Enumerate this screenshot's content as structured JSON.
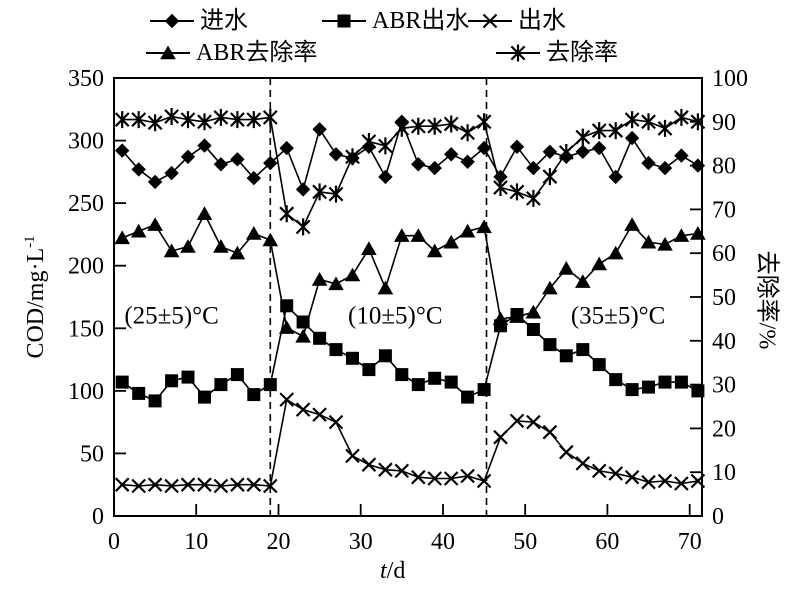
{
  "figure": {
    "description": "COD and removal-rate performance chart over time with three temperature phases"
  },
  "labels": {
    "y_left_base": "COD/mg·L",
    "y_left_sup": "-1",
    "y_right": "去除率/%",
    "x_italic": "t",
    "x_rest": "/d"
  },
  "chart_data": {
    "type": "line",
    "title": "",
    "xlabel": "t/d",
    "ylabel_left": "COD/mg·L-1",
    "ylabel_right": "去除率/%",
    "xlim": [
      0,
      71.5
    ],
    "ylim_left": [
      0,
      350
    ],
    "ylim_right": [
      0,
      100
    ],
    "x_ticks": [
      0,
      10,
      20,
      30,
      40,
      50,
      60,
      70
    ],
    "y_ticks_left": [
      0,
      50,
      100,
      150,
      200,
      250,
      300,
      350
    ],
    "y_ticks_right": [
      0,
      10,
      20,
      30,
      40,
      50,
      60,
      70,
      80,
      90,
      100
    ],
    "grid": false,
    "legend_position": "top",
    "line_color": "#000000",
    "background_color": "#ffffff",
    "phase_dividers_t": [
      19,
      45.3
    ],
    "annotations": [
      {
        "text": "(25±5)°C",
        "t": 7.0,
        "cod": 161
      },
      {
        "text": "(10±5)°C",
        "t": 34.2,
        "cod": 161
      },
      {
        "text": "(35±5)°C",
        "t": 61.3,
        "cod": 161
      }
    ],
    "legend_rows": [
      [
        "influent",
        "abr-effluent",
        "effluent"
      ],
      [
        "abr-removal-rate",
        "removal-rate"
      ]
    ],
    "x": [
      1,
      3,
      5,
      7,
      9,
      11,
      13,
      15,
      17,
      19,
      21,
      23,
      25,
      27,
      29,
      31,
      33,
      35,
      37,
      39,
      41,
      43,
      45,
      47,
      49,
      51,
      53,
      55,
      57,
      59,
      61,
      63,
      65,
      67,
      69,
      71
    ],
    "series": [
      {
        "id": "influent",
        "label": "进水",
        "marker": "diamond",
        "axis": "left",
        "values": [
          292,
          277,
          267,
          274,
          287,
          296,
          281,
          285,
          270,
          282,
          294,
          261,
          309,
          289,
          286,
          295,
          271,
          315,
          281,
          278,
          289,
          283,
          294,
          271,
          295,
          278,
          291,
          287,
          291,
          294,
          271,
          302,
          282,
          278,
          288,
          280
        ]
      },
      {
        "id": "abr-effluent",
        "label": "ABR出水",
        "marker": "square",
        "axis": "left",
        "values": [
          107,
          98,
          92,
          108,
          111,
          95,
          105,
          113,
          97,
          105,
          168,
          155,
          142,
          133,
          126,
          117,
          128,
          113,
          105,
          110,
          107,
          95,
          101,
          152,
          161,
          149,
          137,
          128,
          133,
          121,
          109,
          101,
          103,
          107,
          107,
          100
        ]
      },
      {
        "id": "effluent",
        "label": "出水",
        "marker": "x",
        "axis": "left",
        "values": [
          25,
          24,
          25,
          24,
          25,
          25,
          24,
          25,
          25,
          24,
          93,
          85,
          81,
          75,
          48,
          41,
          37,
          36,
          31,
          30,
          30,
          32,
          28,
          63,
          76,
          75,
          67,
          51,
          42,
          36,
          34,
          31,
          27,
          28,
          26,
          28
        ]
      },
      {
        "id": "abr-removal-rate",
        "label": "ABR去除率",
        "marker": "triangle",
        "axis": "right",
        "values": [
          63.5,
          65,
          66.5,
          60.5,
          61.5,
          69,
          61.5,
          60,
          64.5,
          63,
          43,
          41,
          54,
          53,
          55,
          61,
          52,
          64,
          64,
          60.5,
          62.5,
          65,
          66,
          45,
          45.5,
          46.5,
          52,
          56.5,
          53.5,
          57.5,
          60,
          66.5,
          62.5,
          62,
          64,
          64.5
        ]
      },
      {
        "id": "removal-rate",
        "label": "去除率",
        "marker": "asterisk",
        "axis": "right",
        "values": [
          90.5,
          90.5,
          89.8,
          91.2,
          90.5,
          90,
          91,
          90.5,
          90.5,
          91,
          69,
          66,
          74,
          73.5,
          82,
          85.5,
          84.5,
          88.5,
          89,
          89,
          89.5,
          87.5,
          90,
          75,
          74,
          72.5,
          77.5,
          83,
          86.5,
          88,
          88,
          90.5,
          90,
          88.5,
          91,
          90
        ]
      }
    ]
  }
}
